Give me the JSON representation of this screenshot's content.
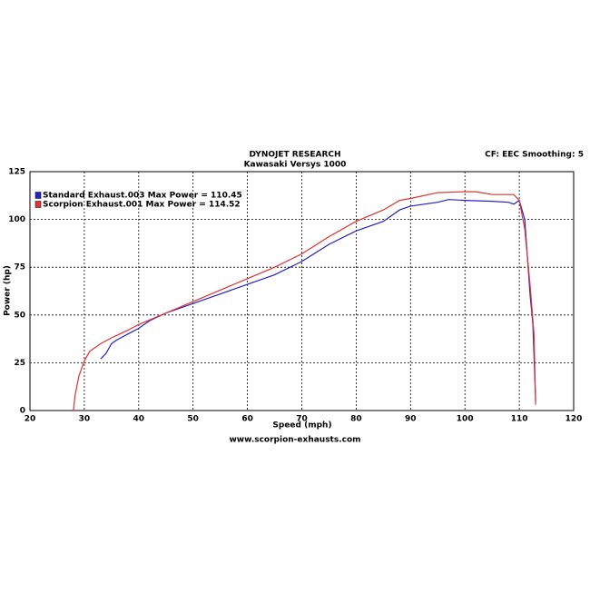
{
  "chart_data": {
    "type": "line",
    "title": "DYNOJET RESEARCH",
    "subtitle": "Kawasaki Versys 1000",
    "annotation": "CF: EEC  Smoothing: 5",
    "xlabel": "Speed (mph)",
    "ylabel": "Power (hp)",
    "footer": "www.scorpion-exhausts.com",
    "xlim": [
      20,
      120
    ],
    "xticks": [
      20,
      30,
      40,
      50,
      60,
      70,
      80,
      90,
      100,
      110,
      120
    ],
    "ylim": [
      0,
      125
    ],
    "yticks": [
      0,
      25,
      50,
      75,
      100,
      125
    ],
    "grid": true,
    "legend": "upper-left",
    "series": [
      {
        "name": "Standard Exhaust.003 Max Power = 110.45",
        "color": "#2323c8",
        "x": [
          33,
          34,
          35,
          36,
          38,
          40,
          42,
          45,
          50,
          55,
          60,
          65,
          70,
          75,
          80,
          85,
          88,
          90,
          95,
          97,
          100,
          105,
          108,
          109,
          110,
          111,
          112,
          112.5,
          113
        ],
        "values": [
          27,
          30,
          35,
          37,
          40,
          43,
          47,
          51,
          56,
          61,
          66,
          71,
          78,
          87,
          94,
          99,
          105,
          107,
          109,
          110.4,
          110,
          109.5,
          109,
          108,
          110,
          100,
          60,
          45,
          5
        ]
      },
      {
        "name": "Scorpion Exhaust.001 Max Power = 114.52",
        "color": "#e03232",
        "x": [
          28,
          28.3,
          29,
          30,
          31,
          33,
          35,
          38,
          40,
          45,
          50,
          55,
          60,
          65,
          70,
          75,
          80,
          85,
          88,
          90,
          95,
          100,
          102,
          105,
          109,
          110,
          111,
          112,
          112.7,
          113
        ],
        "values": [
          0,
          8,
          18,
          26,
          31,
          35,
          38,
          42,
          45,
          51,
          57,
          63,
          69,
          75,
          82,
          91,
          99,
          105,
          110,
          111,
          114,
          114.5,
          114.5,
          113,
          113,
          110,
          95,
          65,
          40,
          3
        ]
      }
    ]
  }
}
